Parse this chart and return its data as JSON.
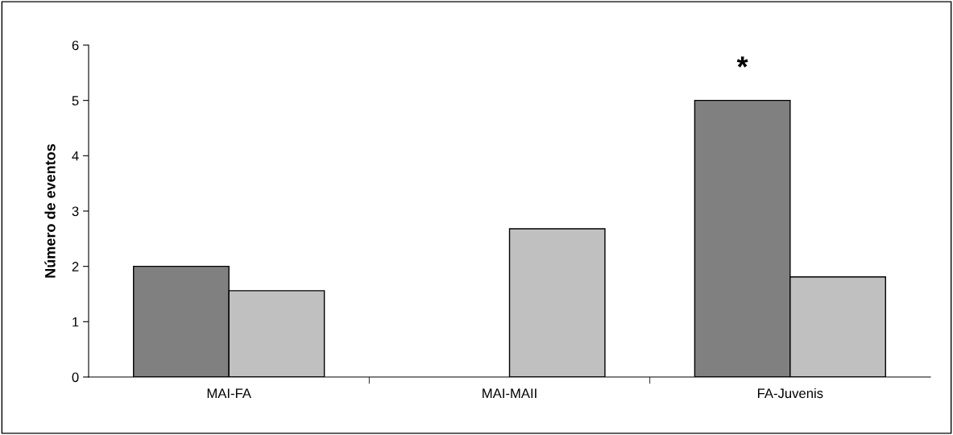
{
  "chart_data": {
    "type": "bar",
    "ylabel": "Número de eventos",
    "categories": [
      "MAI-FA",
      "MAI-MAII",
      "FA-Juvenis"
    ],
    "series": [
      {
        "color": "#808080",
        "values": [
          2,
          null,
          5
        ]
      },
      {
        "color": "#c0c0c0",
        "values": [
          1.56,
          2.68,
          1.81
        ]
      }
    ],
    "ylim": [
      0,
      6
    ],
    "yticks": [
      0,
      1,
      2,
      3,
      4,
      5,
      6
    ],
    "grid": false,
    "legend": false,
    "annotations": [
      "*"
    ]
  }
}
